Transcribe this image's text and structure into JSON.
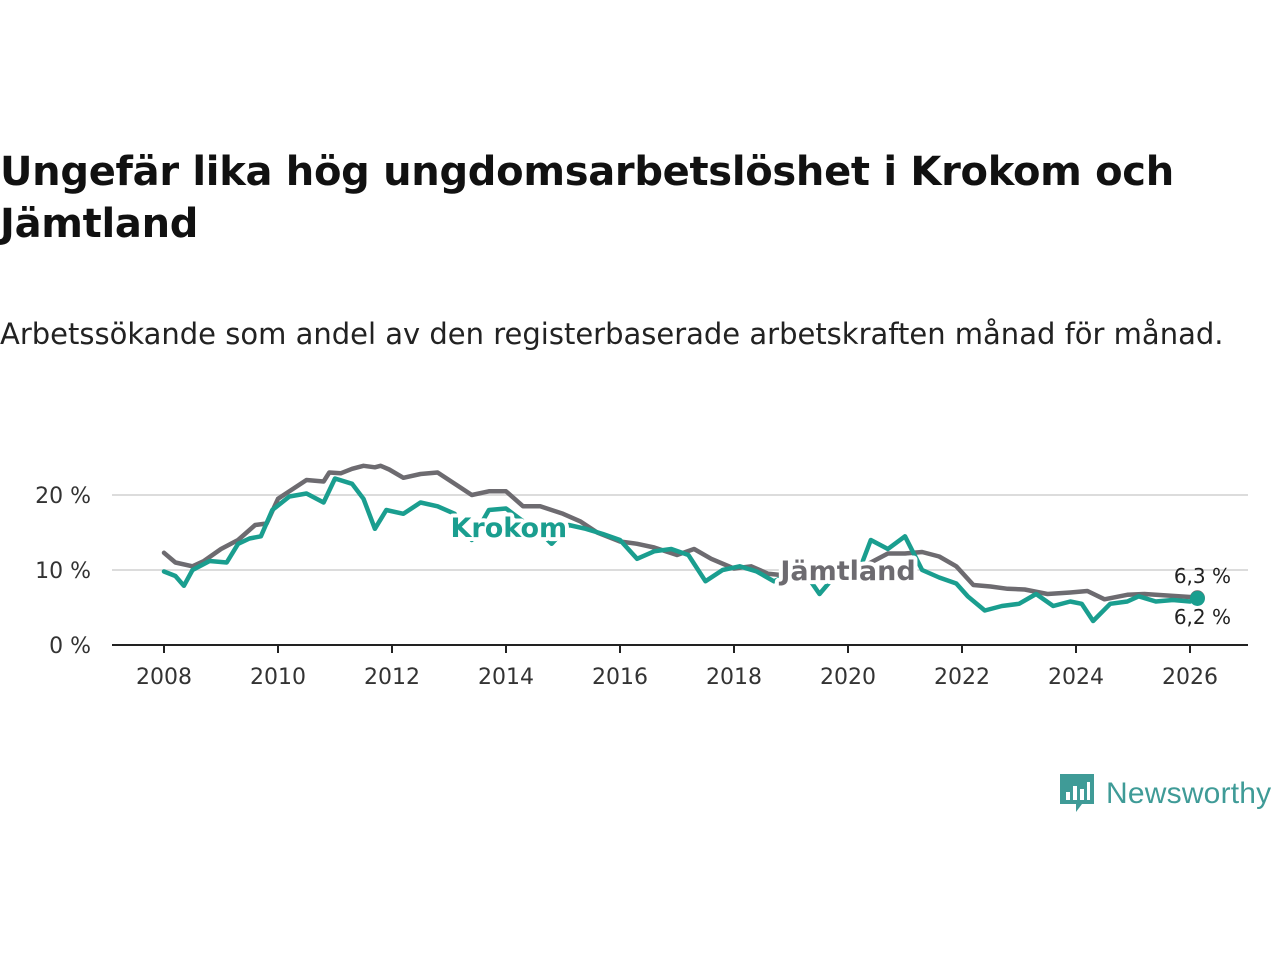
{
  "title": "Ungefär lika hög ungdomsarbetslöshet i Krokom och Jämtland",
  "subtitle": "Arbetssökande som andel av den registerbaserade arbetskraften månad för månad.",
  "logo": {
    "text": "Newsworthy",
    "icon": "newsworthy-logo-icon",
    "color": "#3f9b97"
  },
  "chart_data": {
    "type": "line",
    "title": "Ungefär lika hög ungdomsarbetslöshet i Krokom och Jämtland",
    "xlabel": "",
    "ylabel": "",
    "xlim": [
      2007.2,
      2027.0
    ],
    "ylim": [
      0,
      20
    ],
    "y_ticks": [
      0,
      10,
      20
    ],
    "y_tick_labels": [
      "0 %",
      "10 %",
      "20 %"
    ],
    "x_ticks": [
      2008,
      2010,
      2012,
      2014,
      2016,
      2018,
      2020,
      2022,
      2024,
      2026
    ],
    "x_tick_labels": [
      "2008",
      "2010",
      "2012",
      "2014",
      "2016",
      "2018",
      "2020",
      "2022",
      "2024",
      "2026"
    ],
    "grid": true,
    "series": [
      {
        "name": "Jämtland",
        "label": "Jämtland",
        "color": "#6d6b70",
        "end_label": "6,3 %",
        "points": [
          [
            2008.0,
            12.3
          ],
          [
            2008.2,
            11.0
          ],
          [
            2008.5,
            10.5
          ],
          [
            2008.7,
            11.2
          ],
          [
            2009.0,
            12.8
          ],
          [
            2009.3,
            14.0
          ],
          [
            2009.6,
            16.0
          ],
          [
            2009.8,
            16.2
          ],
          [
            2010.0,
            19.5
          ],
          [
            2010.3,
            21.0
          ],
          [
            2010.5,
            22.0
          ],
          [
            2010.8,
            21.8
          ],
          [
            2010.9,
            23.0
          ],
          [
            2011.1,
            22.9
          ],
          [
            2011.3,
            23.5
          ],
          [
            2011.5,
            23.9
          ],
          [
            2011.7,
            23.7
          ],
          [
            2011.8,
            23.9
          ],
          [
            2011.95,
            23.4
          ],
          [
            2012.2,
            22.3
          ],
          [
            2012.5,
            22.8
          ],
          [
            2012.8,
            23.0
          ],
          [
            2013.1,
            21.5
          ],
          [
            2013.4,
            20.0
          ],
          [
            2013.7,
            20.5
          ],
          [
            2014.0,
            20.5
          ],
          [
            2014.3,
            18.5
          ],
          [
            2014.6,
            18.5
          ],
          [
            2015.0,
            17.5
          ],
          [
            2015.3,
            16.5
          ],
          [
            2015.6,
            15.0
          ],
          [
            2016.0,
            13.8
          ],
          [
            2016.3,
            13.5
          ],
          [
            2016.6,
            13.0
          ],
          [
            2017.0,
            12.0
          ],
          [
            2017.3,
            12.8
          ],
          [
            2017.6,
            11.5
          ],
          [
            2018.0,
            10.2
          ],
          [
            2018.3,
            10.5
          ],
          [
            2018.6,
            9.5
          ],
          [
            2019.0,
            9.2
          ],
          [
            2019.3,
            8.8
          ],
          [
            2019.6,
            9.0
          ],
          [
            2020.0,
            9.5
          ],
          [
            2020.4,
            11.0
          ],
          [
            2020.7,
            12.2
          ],
          [
            2021.0,
            12.2
          ],
          [
            2021.3,
            12.4
          ],
          [
            2021.6,
            11.8
          ],
          [
            2021.9,
            10.5
          ],
          [
            2022.2,
            8.0
          ],
          [
            2022.5,
            7.8
          ],
          [
            2022.8,
            7.5
          ],
          [
            2023.1,
            7.4
          ],
          [
            2023.5,
            6.8
          ],
          [
            2023.9,
            7.0
          ],
          [
            2024.2,
            7.2
          ],
          [
            2024.5,
            6.1
          ],
          [
            2024.9,
            6.7
          ],
          [
            2025.2,
            6.8
          ],
          [
            2025.6,
            6.6
          ],
          [
            2026.0,
            6.4
          ],
          [
            2026.13,
            6.3
          ]
        ]
      },
      {
        "name": "Krokom",
        "label": "Krokom",
        "color": "#1a9e8f",
        "end_label": "6,2 %",
        "points": [
          [
            2008.0,
            9.8
          ],
          [
            2008.2,
            9.2
          ],
          [
            2008.35,
            7.9
          ],
          [
            2008.5,
            10.0
          ],
          [
            2008.8,
            11.2
          ],
          [
            2009.1,
            11.0
          ],
          [
            2009.3,
            13.5
          ],
          [
            2009.5,
            14.2
          ],
          [
            2009.7,
            14.5
          ],
          [
            2009.9,
            18.0
          ],
          [
            2010.2,
            19.8
          ],
          [
            2010.5,
            20.2
          ],
          [
            2010.8,
            19.0
          ],
          [
            2011.0,
            22.2
          ],
          [
            2011.3,
            21.5
          ],
          [
            2011.5,
            19.5
          ],
          [
            2011.7,
            15.5
          ],
          [
            2011.9,
            18.0
          ],
          [
            2012.2,
            17.5
          ],
          [
            2012.5,
            19.0
          ],
          [
            2012.8,
            18.5
          ],
          [
            2013.1,
            17.5
          ],
          [
            2013.4,
            14.0
          ],
          [
            2013.7,
            18.0
          ],
          [
            2014.0,
            18.2
          ],
          [
            2014.3,
            16.5
          ],
          [
            2014.6,
            15.0
          ],
          [
            2014.8,
            13.5
          ],
          [
            2015.1,
            16.0
          ],
          [
            2015.4,
            15.5
          ],
          [
            2015.7,
            14.8
          ],
          [
            2016.0,
            14.0
          ],
          [
            2016.3,
            11.5
          ],
          [
            2016.6,
            12.5
          ],
          [
            2016.9,
            12.8
          ],
          [
            2017.2,
            12.0
          ],
          [
            2017.5,
            8.5
          ],
          [
            2017.8,
            10.0
          ],
          [
            2018.1,
            10.5
          ],
          [
            2018.4,
            9.8
          ],
          [
            2018.7,
            8.5
          ],
          [
            2019.0,
            9.5
          ],
          [
            2019.3,
            9.0
          ],
          [
            2019.5,
            6.8
          ],
          [
            2019.8,
            9.5
          ],
          [
            2020.2,
            10.0
          ],
          [
            2020.4,
            14.0
          ],
          [
            2020.7,
            12.8
          ],
          [
            2021.0,
            14.5
          ],
          [
            2021.3,
            10.0
          ],
          [
            2021.6,
            9.0
          ],
          [
            2021.9,
            8.2
          ],
          [
            2022.1,
            6.5
          ],
          [
            2022.4,
            4.6
          ],
          [
            2022.7,
            5.2
          ],
          [
            2023.0,
            5.5
          ],
          [
            2023.3,
            6.8
          ],
          [
            2023.6,
            5.2
          ],
          [
            2023.9,
            5.8
          ],
          [
            2024.1,
            5.5
          ],
          [
            2024.3,
            3.2
          ],
          [
            2024.6,
            5.5
          ],
          [
            2024.9,
            5.8
          ],
          [
            2025.1,
            6.5
          ],
          [
            2025.4,
            5.8
          ],
          [
            2025.7,
            6.0
          ],
          [
            2026.0,
            5.8
          ],
          [
            2026.13,
            6.2
          ]
        ]
      }
    ]
  }
}
